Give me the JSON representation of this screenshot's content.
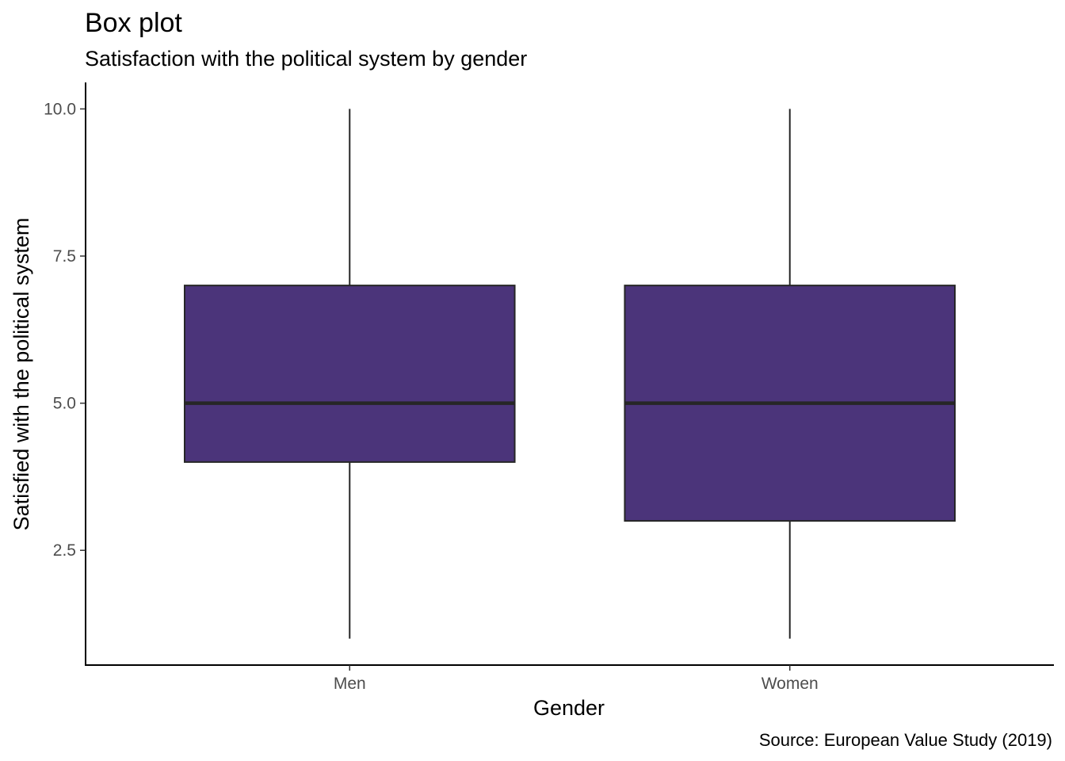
{
  "chart_data": {
    "type": "box",
    "title": "Box plot",
    "subtitle": "Satisfaction with the political system by gender",
    "xlabel": "Gender",
    "ylabel": "Satisfied with the political system",
    "caption": "Source: European Value Study (2019)",
    "categories": [
      "Men",
      "Women"
    ],
    "boxes": [
      {
        "category": "Men",
        "min": 1,
        "q1": 4,
        "median": 5,
        "q3": 7,
        "max": 10
      },
      {
        "category": "Women",
        "min": 1,
        "q1": 3,
        "median": 5,
        "q3": 7,
        "max": 10
      }
    ],
    "yticks": [
      {
        "value": 2.5,
        "label": "2.5"
      },
      {
        "value": 5,
        "label": "5.0"
      },
      {
        "value": 7.5,
        "label": "7.5"
      },
      {
        "value": 10,
        "label": "10.0"
      }
    ],
    "ylim": [
      0.55,
      10.45
    ],
    "grid": false,
    "legend": "none",
    "colors": {
      "box_fill": "#4b347a",
      "box_outline": "#262626",
      "axis": "#000000",
      "tick_label": "#4d4d4d"
    }
  }
}
